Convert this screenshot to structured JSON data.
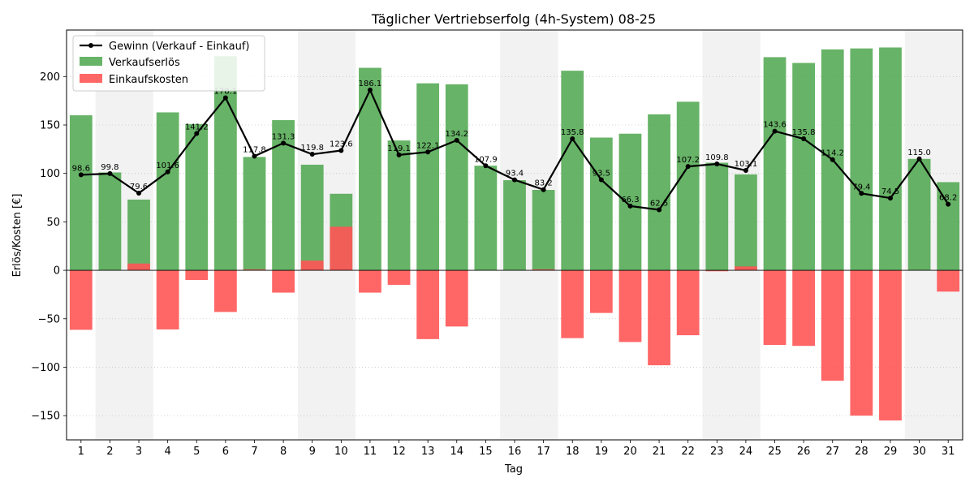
{
  "chart_data": {
    "type": "bar",
    "title": "Täglicher Vertriebserfolg (4h-System) 08-25",
    "xlabel": "Tag",
    "ylabel": "Erlös/Kosten [€]",
    "ylim": [
      -175,
      248
    ],
    "yticks": [
      -150,
      -100,
      -50,
      0,
      50,
      100,
      150,
      200
    ],
    "grid": "horizontal dotted",
    "legend_position": "top-left",
    "categories": [
      "1",
      "2",
      "3",
      "4",
      "5",
      "6",
      "7",
      "8",
      "9",
      "10",
      "11",
      "12",
      "13",
      "14",
      "15",
      "16",
      "17",
      "18",
      "19",
      "20",
      "21",
      "22",
      "23",
      "24",
      "25",
      "26",
      "27",
      "28",
      "29",
      "30",
      "31"
    ],
    "shaded_days": [
      "2",
      "3",
      "9",
      "10",
      "16",
      "17",
      "23",
      "24",
      "30",
      "31"
    ],
    "series": [
      {
        "name": "Verkaufserlös",
        "type": "bar",
        "color": "#4ca64c",
        "values": [
          160,
          101,
          73,
          163,
          151,
          221,
          117,
          155,
          109,
          79,
          209,
          134,
          193,
          192,
          108,
          93,
          83,
          206,
          137,
          141,
          161,
          174,
          111,
          99,
          220,
          214,
          228,
          229,
          230,
          115,
          91
        ]
      },
      {
        "name": "Einkaufskosten",
        "type": "bar",
        "color": "#ff5555",
        "values": [
          -61.4,
          0,
          7,
          -61,
          -10,
          -43,
          1,
          -23,
          10,
          45,
          -23,
          -15,
          -71,
          -58,
          0,
          0,
          1,
          -70,
          -44,
          -74,
          -98,
          -67,
          -1,
          4,
          -77,
          -78,
          -114,
          -150,
          -155,
          0,
          -22
        ]
      },
      {
        "name": "Gewinn (Verkauf - Einkauf)",
        "type": "line",
        "color": "#000000",
        "values": [
          98.6,
          99.8,
          79.6,
          101.6,
          141.2,
          178.1,
          117.8,
          131.3,
          119.8,
          123.6,
          186.1,
          119.1,
          122.1,
          134.2,
          107.9,
          93.4,
          83.2,
          135.8,
          93.5,
          66.3,
          62.5,
          107.2,
          109.8,
          103.1,
          143.6,
          135.8,
          114.2,
          79.4,
          74.5,
          115.0,
          68.2
        ],
        "labels": [
          "98.6",
          "99.8",
          "79.6",
          "101.6",
          "141.2",
          "178.1",
          "117.8",
          "131.3",
          "119.8",
          "123.6",
          "186.1",
          "119.1",
          "122.1",
          "134.2",
          "107.9",
          "93.4",
          "83.2",
          "135.8",
          "93.5",
          "66.3",
          "62.5",
          "107.2",
          "109.8",
          "103.1",
          "143.6",
          "135.8",
          "114.2",
          "79.4",
          "74.5",
          "115.0",
          "68.2"
        ]
      }
    ]
  }
}
